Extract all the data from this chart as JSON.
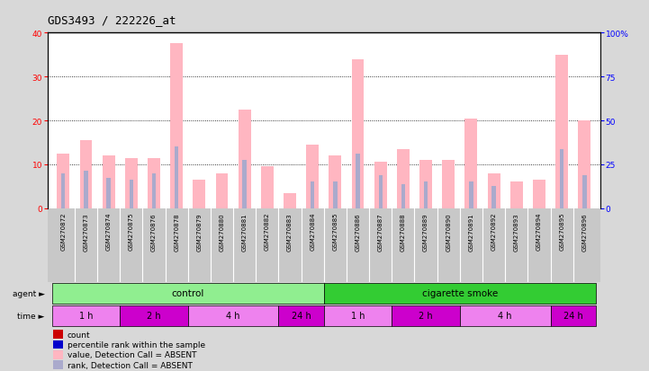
{
  "title": "GDS3493 / 222226_at",
  "samples": [
    "GSM270872",
    "GSM270873",
    "GSM270874",
    "GSM270875",
    "GSM270876",
    "GSM270878",
    "GSM270879",
    "GSM270880",
    "GSM270881",
    "GSM270882",
    "GSM270883",
    "GSM270884",
    "GSM270885",
    "GSM270886",
    "GSM270887",
    "GSM270888",
    "GSM270889",
    "GSM270890",
    "GSM270891",
    "GSM270892",
    "GSM270893",
    "GSM270894",
    "GSM270895",
    "GSM270896"
  ],
  "absent_count": [
    12.5,
    15.5,
    12.0,
    11.5,
    11.5,
    37.5,
    6.5,
    8.0,
    22.5,
    9.5,
    3.5,
    14.5,
    12.0,
    34.0,
    10.5,
    13.5,
    11.0,
    11.0,
    20.5,
    8.0,
    6.0,
    6.5,
    35.0,
    20.0
  ],
  "absent_rank": [
    8.0,
    8.5,
    7.0,
    6.5,
    8.0,
    14.0,
    0,
    0,
    11.0,
    0,
    0,
    6.0,
    6.0,
    12.5,
    7.5,
    5.5,
    6.0,
    0,
    6.0,
    5.0,
    0,
    0,
    13.5,
    7.5
  ],
  "ylim_left": [
    0,
    40
  ],
  "ylim_right": [
    0,
    100
  ],
  "yticks_left": [
    0,
    10,
    20,
    30,
    40
  ],
  "yticks_right": [
    0,
    25,
    50,
    75,
    100
  ],
  "yticklabels_right": [
    "0",
    "25",
    "50",
    "75",
    "100%"
  ],
  "time_groups": [
    {
      "label": "1 h",
      "indices": [
        0,
        1,
        2
      ],
      "color": "#EE82EE"
    },
    {
      "label": "2 h",
      "indices": [
        3,
        4,
        5
      ],
      "color": "#CC00CC"
    },
    {
      "label": "4 h",
      "indices": [
        6,
        7,
        8,
        9
      ],
      "color": "#EE82EE"
    },
    {
      "label": "24 h",
      "indices": [
        10,
        11
      ],
      "color": "#CC00CC"
    },
    {
      "label": "1 h",
      "indices": [
        12,
        13,
        14
      ],
      "color": "#EE82EE"
    },
    {
      "label": "2 h",
      "indices": [
        15,
        16,
        17
      ],
      "color": "#CC00CC"
    },
    {
      "label": "4 h",
      "indices": [
        18,
        19,
        20,
        21
      ],
      "color": "#EE82EE"
    },
    {
      "label": "24 h",
      "indices": [
        22,
        23
      ],
      "color": "#CC00CC"
    }
  ],
  "bar_width": 0.55,
  "count_color_absent": "#FFB6C1",
  "rank_color_absent": "#AAAACC",
  "legend_colors": [
    "#CC0000",
    "#0000CC",
    "#FFB6C1",
    "#AAAACC"
  ],
  "legend_labels": [
    "count",
    "percentile rank within the sample",
    "value, Detection Call = ABSENT",
    "rank, Detection Call = ABSENT"
  ],
  "bg_color": "#D8D8D8",
  "plot_bg": "#FFFFFF",
  "title_fontsize": 9,
  "tick_fontsize": 6.5,
  "sample_fontsize": 5.0
}
